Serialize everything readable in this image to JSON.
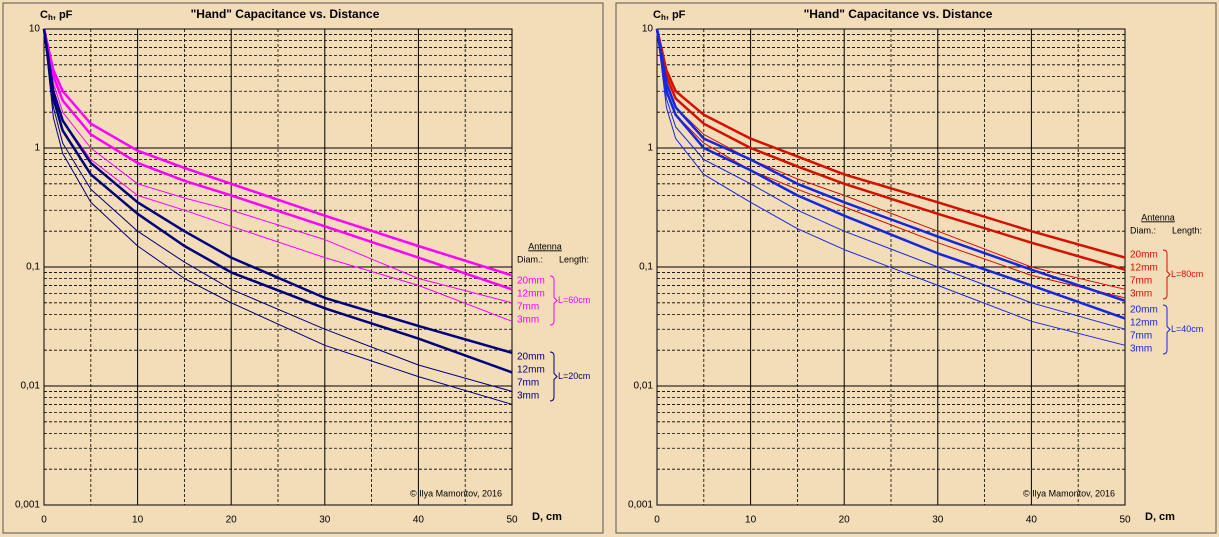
{
  "chart_data": [
    {
      "type": "line",
      "title": "\"Hand\" Capacitance vs. Distance",
      "y_label": {
        "main": "C",
        "sub": "h",
        "rest": ", pF"
      },
      "x_label": "D, cm",
      "credit": "© Ilya Mamontov, 2016",
      "legend": {
        "title": "Antenna",
        "col1": "Diam.:",
        "col2": "Length:"
      },
      "log_y": true,
      "grid": true,
      "xlim": [
        0,
        50
      ],
      "xticks": [
        0,
        10,
        20,
        30,
        40,
        50
      ],
      "ylim": [
        0.001,
        10
      ],
      "yticks": [
        10,
        1,
        {
          "value": 0.1,
          "label": "0,1"
        },
        {
          "value": 0.01,
          "label": "0,01"
        },
        {
          "value": 0.001,
          "label": "0,001"
        }
      ],
      "x": [
        0,
        1,
        2,
        5,
        10,
        15,
        20,
        30,
        40,
        50
      ],
      "series_groups": [
        {
          "label": "L=60cm",
          "color": "#ff00ff",
          "series": [
            {
              "name": "20mm",
              "line_width": 2.5,
              "values": [
                10,
                4.5,
                3,
                1.6,
                0.95,
                0.68,
                0.5,
                0.27,
                0.15,
                0.085
              ]
            },
            {
              "name": "12mm",
              "line_width": 2.5,
              "values": [
                10,
                4,
                2.5,
                1.3,
                0.75,
                0.53,
                0.4,
                0.22,
                0.12,
                0.065
              ]
            },
            {
              "name": "7mm",
              "line_width": 1,
              "values": [
                10,
                3.5,
                2,
                1,
                0.5,
                0.38,
                0.3,
                0.17,
                0.08,
                0.05
              ]
            },
            {
              "name": "3mm",
              "line_width": 1,
              "values": [
                10,
                3,
                1.7,
                0.8,
                0.4,
                0.3,
                0.22,
                0.12,
                0.07,
                0.035
              ]
            }
          ]
        },
        {
          "label": "L=20cm",
          "color": "#00007a",
          "series": [
            {
              "name": "20mm",
              "line_width": 2.5,
              "values": [
                10,
                3,
                1.7,
                0.75,
                0.35,
                0.2,
                0.12,
                0.055,
                0.032,
                0.019
              ]
            },
            {
              "name": "12mm",
              "line_width": 2.5,
              "values": [
                10,
                2.6,
                1.4,
                0.6,
                0.28,
                0.15,
                0.09,
                0.045,
                0.025,
                0.013
              ]
            },
            {
              "name": "7mm",
              "line_width": 1,
              "values": [
                10,
                2.2,
                1.1,
                0.45,
                0.2,
                0.11,
                0.065,
                0.03,
                0.015,
                0.009
              ]
            },
            {
              "name": "3mm",
              "line_width": 1,
              "values": [
                10,
                1.8,
                0.9,
                0.35,
                0.15,
                0.08,
                0.05,
                0.022,
                0.012,
                0.007
              ]
            }
          ]
        }
      ]
    },
    {
      "type": "line",
      "title": "\"Hand\" Capacitance vs. Distance",
      "y_label": {
        "main": "C",
        "sub": "h",
        "rest": ", pF"
      },
      "x_label": "D, cm",
      "credit": "© Ilya Mamontov, 2016",
      "legend": {
        "title": "Antenna",
        "col1": "Diam.:",
        "col2": "Length:"
      },
      "log_y": true,
      "grid": true,
      "xlim": [
        0,
        50
      ],
      "xticks": [
        0,
        10,
        20,
        30,
        40,
        50
      ],
      "ylim": [
        0.001,
        10
      ],
      "yticks": [
        10,
        1,
        {
          "value": 0.1,
          "label": "0,1"
        },
        {
          "value": 0.01,
          "label": "0,01"
        },
        {
          "value": 0.001,
          "label": "0,001"
        }
      ],
      "x": [
        0,
        1,
        2,
        5,
        10,
        15,
        20,
        30,
        40,
        50
      ],
      "series_groups": [
        {
          "label": "L=80cm",
          "color": "#d41000",
          "series": [
            {
              "name": "20mm",
              "line_width": 2.5,
              "values": [
                10,
                4.5,
                3,
                1.9,
                1.2,
                0.85,
                0.6,
                0.35,
                0.2,
                0.12
              ]
            },
            {
              "name": "12mm",
              "line_width": 2.5,
              "values": [
                10,
                4,
                2.6,
                1.6,
                1,
                0.7,
                0.5,
                0.28,
                0.16,
                0.095
              ]
            },
            {
              "name": "7mm",
              "line_width": 1,
              "values": [
                10,
                3.5,
                2.2,
                1.3,
                0.8,
                0.55,
                0.4,
                0.2,
                0.1,
                0.065
              ]
            },
            {
              "name": "3mm",
              "line_width": 1,
              "values": [
                10,
                3,
                1.9,
                1.1,
                0.65,
                0.45,
                0.32,
                0.16,
                0.085,
                0.055
              ]
            }
          ]
        },
        {
          "label": "L=40cm",
          "color": "#1428e0",
          "series": [
            {
              "name": "20mm",
              "line_width": 2.5,
              "values": [
                10,
                3.5,
                2.2,
                1.2,
                0.8,
                0.5,
                0.35,
                0.18,
                0.095,
                0.052
              ]
            },
            {
              "name": "12mm",
              "line_width": 2.5,
              "values": [
                10,
                3,
                1.9,
                1,
                0.65,
                0.4,
                0.27,
                0.13,
                0.07,
                0.037
              ]
            },
            {
              "name": "7mm",
              "line_width": 1,
              "values": [
                10,
                2.6,
                1.5,
                0.8,
                0.5,
                0.3,
                0.2,
                0.1,
                0.05,
                0.03
              ]
            },
            {
              "name": "3mm",
              "line_width": 1,
              "values": [
                10,
                2.2,
                1.2,
                0.6,
                0.35,
                0.21,
                0.14,
                0.07,
                0.035,
                0.022
              ]
            }
          ]
        }
      ]
    }
  ]
}
